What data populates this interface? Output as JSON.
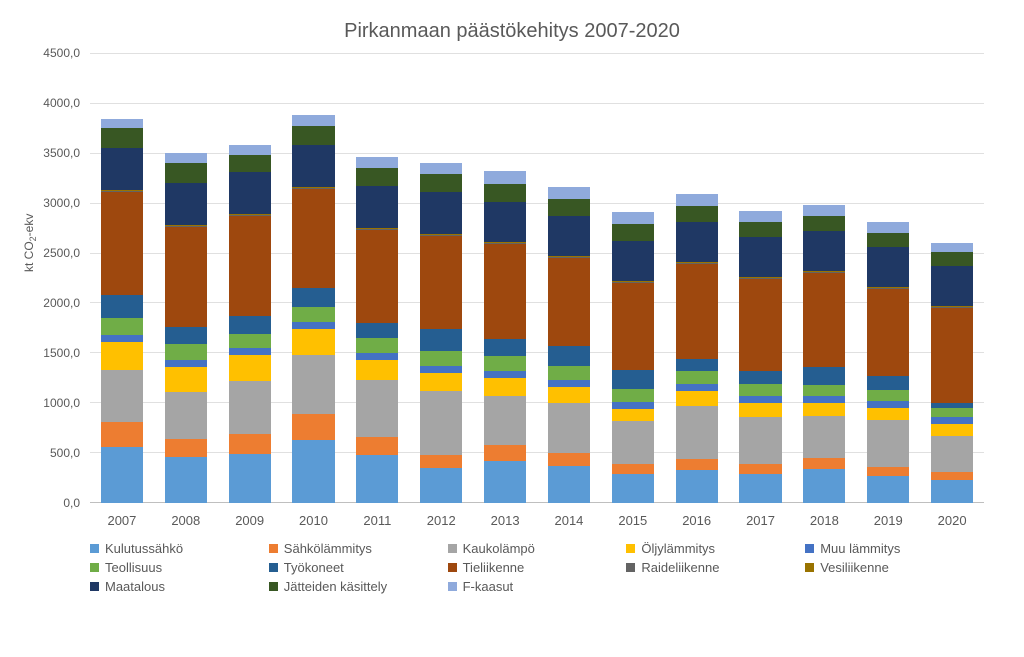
{
  "chart": {
    "title": "Pirkanmaan päästökehitys 2007-2020",
    "ylabel_html": "kt CO<sub>2</sub>-ekv",
    "ylim": [
      0,
      4500
    ],
    "ytick_step": 500,
    "ytick_format": "fi-decimal",
    "categories": [
      "2007",
      "2008",
      "2009",
      "2010",
      "2011",
      "2012",
      "2013",
      "2014",
      "2015",
      "2016",
      "2017",
      "2018",
      "2019",
      "2020"
    ],
    "series": [
      {
        "key": "kulutussahko",
        "label": "Kulutussähkö",
        "color": "#5b9bd5"
      },
      {
        "key": "sahkolammitys",
        "label": "Sähkölämmitys",
        "color": "#ed7d31"
      },
      {
        "key": "kaukolampo",
        "label": "Kaukolämpö",
        "color": "#a5a5a5"
      },
      {
        "key": "oljylammitys",
        "label": "Öljylämmitys",
        "color": "#ffc000"
      },
      {
        "key": "muulammitys",
        "label": "Muu lämmitys",
        "color": "#4472c4"
      },
      {
        "key": "teollisuus",
        "label": "Teollisuus",
        "color": "#70ad47"
      },
      {
        "key": "tyokoneet",
        "label": "Työkoneet",
        "color": "#255e91"
      },
      {
        "key": "tieliikenne",
        "label": "Tieliikenne",
        "color": "#9e480e"
      },
      {
        "key": "raideliikenne",
        "label": "Raideliikenne",
        "color": "#636363"
      },
      {
        "key": "vesiliikenne",
        "label": "Vesiliikenne",
        "color": "#997300"
      },
      {
        "key": "maatalous",
        "label": "Maatalous",
        "color": "#1f3864"
      },
      {
        "key": "jatteet",
        "label": "Jätteiden käsittely",
        "color": "#385723"
      },
      {
        "key": "fkaasut",
        "label": "F-kaasut",
        "color": "#8faadc"
      }
    ],
    "data": {
      "kulutussahko": [
        560,
        460,
        490,
        630,
        480,
        350,
        420,
        370,
        290,
        330,
        290,
        340,
        270,
        230
      ],
      "sahkolammitys": [
        250,
        180,
        200,
        260,
        180,
        130,
        160,
        130,
        100,
        110,
        100,
        110,
        90,
        80
      ],
      "kaukolampo": [
        520,
        470,
        530,
        590,
        570,
        640,
        490,
        500,
        430,
        530,
        470,
        420,
        470,
        360
      ],
      "oljylammitys": [
        280,
        250,
        260,
        260,
        200,
        180,
        180,
        160,
        120,
        150,
        140,
        130,
        120,
        120
      ],
      "muulammitys": [
        70,
        70,
        70,
        70,
        70,
        70,
        70,
        70,
        70,
        70,
        70,
        70,
        70,
        70
      ],
      "teollisuus": [
        170,
        160,
        140,
        150,
        150,
        150,
        150,
        140,
        130,
        130,
        120,
        110,
        110,
        90
      ],
      "tyokoneet": [
        230,
        170,
        180,
        190,
        150,
        220,
        170,
        200,
        190,
        120,
        130,
        180,
        140,
        50
      ],
      "tieliikenne": [
        1030,
        1000,
        1000,
        990,
        930,
        930,
        950,
        880,
        870,
        950,
        920,
        940,
        870,
        950
      ],
      "raideliikenne": [
        10,
        10,
        10,
        10,
        10,
        10,
        10,
        10,
        10,
        10,
        10,
        10,
        10,
        10
      ],
      "vesiliikenne": [
        10,
        10,
        10,
        10,
        10,
        10,
        10,
        10,
        10,
        10,
        10,
        10,
        10,
        10
      ],
      "maatalous": [
        420,
        420,
        420,
        420,
        420,
        420,
        400,
        400,
        400,
        400,
        400,
        400,
        400,
        400
      ],
      "jatteet": [
        200,
        200,
        170,
        190,
        180,
        180,
        180,
        170,
        170,
        160,
        150,
        150,
        140,
        140
      ],
      "fkaasut": [
        90,
        100,
        100,
        110,
        110,
        110,
        130,
        120,
        120,
        120,
        110,
        110,
        110,
        90
      ]
    },
    "background_color": "#ffffff",
    "grid_color": "#e0e0e0",
    "axis_color": "#bfbfbf",
    "text_color": "#595959",
    "title_fontsize": 20,
    "label_fontsize": 12,
    "tick_fontsize": 12,
    "legend_fontsize": 13
  }
}
